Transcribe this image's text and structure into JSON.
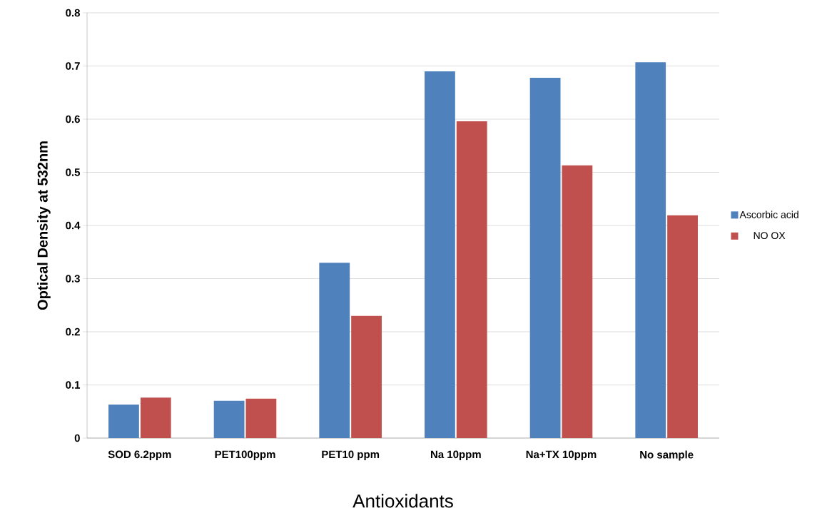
{
  "chart_data": {
    "type": "bar",
    "xlabel": "Antioxidants",
    "ylabel": "Optical Density at  532nm",
    "categories": [
      "SOD 6.2ppm",
      "PET100ppm",
      "PET10 ppm",
      "Na 10ppm",
      "Na+TX 10ppm",
      "No sample"
    ],
    "series": [
      {
        "name": "Ascorbic acid",
        "color": "#4f81bd",
        "values": [
          0.063,
          0.07,
          0.33,
          0.69,
          0.678,
          0.707
        ]
      },
      {
        "name": "NO OX",
        "color": "#c0504d",
        "values": [
          0.076,
          0.074,
          0.23,
          0.596,
          0.513,
          0.419
        ]
      }
    ],
    "ylim": [
      0,
      0.8
    ],
    "yticks": [
      0,
      0.1,
      0.2,
      0.3,
      0.4,
      0.5,
      0.6,
      0.7,
      0.8
    ],
    "grid": "y",
    "legend": "right"
  }
}
